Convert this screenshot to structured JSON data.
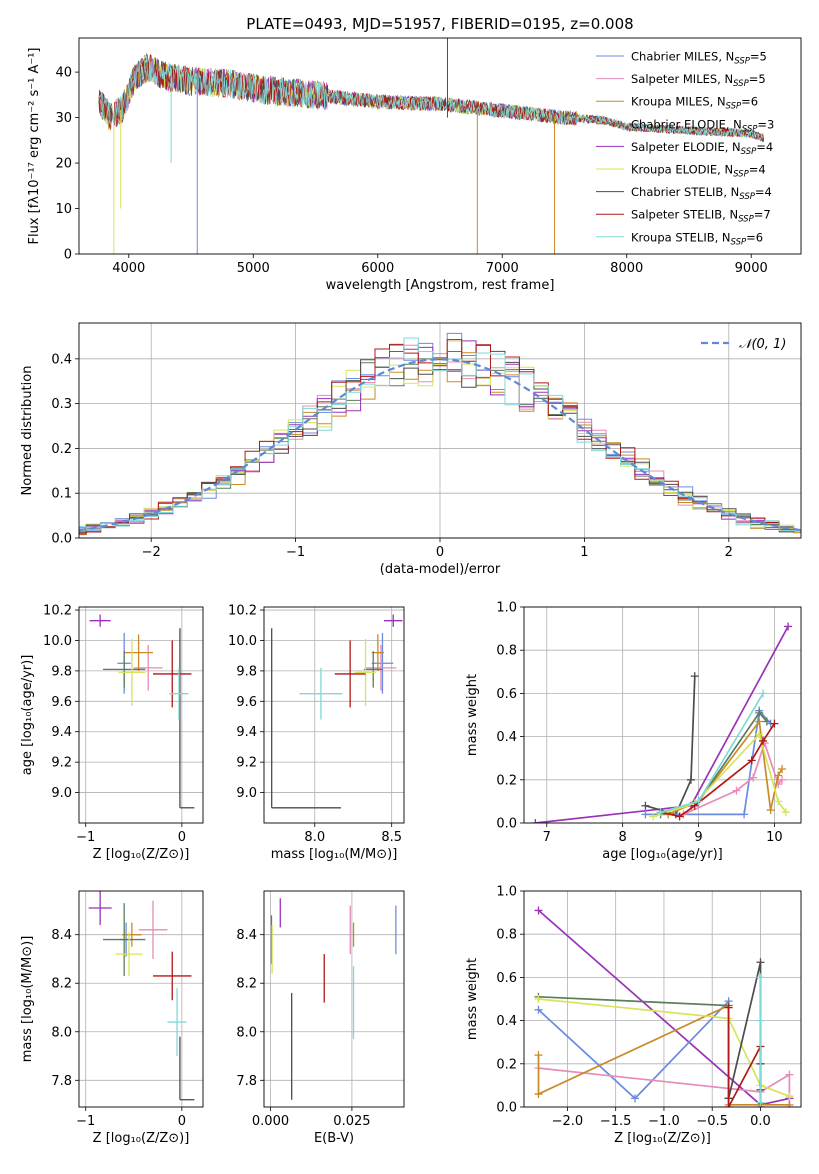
{
  "title": "PLATE=0493, MJD=51957, FIBERID=0195, z=0.008",
  "colors": {
    "cm": "#6a8be0",
    "sm": "#e58cb8",
    "km": "#c98a26",
    "ce": "#5a7d5a",
    "se": "#9932b8",
    "ke": "#d7e35a",
    "cs": "#4c4c4c",
    "ss": "#b01818",
    "ks": "#7fd9d9",
    "norm": "#5b8bd6",
    "grid": "#b0b0b0"
  },
  "chart_data": [
    {
      "id": "spectrum",
      "type": "line",
      "xlabel": "wavelength [Angstrom, rest frame]",
      "ylabel": "Flux [fλ10⁻¹⁷ erg cm⁻² s⁻¹ A⁻¹]",
      "xlim": [
        3600,
        9400
      ],
      "ylim": [
        0,
        47.5
      ],
      "xticks": [
        4000,
        5000,
        6000,
        7000,
        8000,
        9000
      ],
      "yticks": [
        0,
        10,
        20,
        30,
        40
      ],
      "grid": false,
      "legend_position": "top-right",
      "legend": [
        {
          "label": "Chabrier MILES, N",
          "sub": "SSP",
          "tail": "=5",
          "color": "cm"
        },
        {
          "label": "Salpeter MILES, N",
          "sub": "SSP",
          "tail": "=5",
          "color": "sm"
        },
        {
          "label": "Kroupa MILES, N",
          "sub": "SSP",
          "tail": "=6",
          "color": "km"
        },
        {
          "label": "Chabrier ELODIE, N",
          "sub": "SSP",
          "tail": "=3",
          "color": "ce"
        },
        {
          "label": "Salpeter ELODIE, N",
          "sub": "SSP",
          "tail": "=4",
          "color": "se"
        },
        {
          "label": "Kroupa ELODIE, N",
          "sub": "SSP",
          "tail": "=4",
          "color": "ke"
        },
        {
          "label": "Chabrier STELIB, N",
          "sub": "SSP",
          "tail": "=4",
          "color": "cs"
        },
        {
          "label": "Salpeter STELIB, N",
          "sub": "SSP",
          "tail": "=7",
          "color": "ss"
        },
        {
          "label": "Kroupa STELIB, N",
          "sub": "SSP",
          "tail": "=6",
          "color": "ks"
        }
      ],
      "continuum": [
        [
          3760,
          34
        ],
        [
          3850,
          30
        ],
        [
          3950,
          32
        ],
        [
          4050,
          39
        ],
        [
          4150,
          41
        ],
        [
          4300,
          39
        ],
        [
          4500,
          38
        ],
        [
          4800,
          37.5
        ],
        [
          5100,
          36
        ],
        [
          5500,
          35
        ],
        [
          6000,
          33.5
        ],
        [
          6500,
          33
        ],
        [
          7000,
          31.5
        ],
        [
          7500,
          30
        ],
        [
          7800,
          29.5
        ],
        [
          8000,
          28
        ],
        [
          8300,
          27.5
        ],
        [
          8600,
          27
        ],
        [
          9000,
          26.5
        ],
        [
          9100,
          25.5
        ]
      ],
      "spikes": [
        {
          "x": 3880,
          "ymin": 0,
          "color": "ke"
        },
        {
          "x": 3935,
          "ymin": 10,
          "color": "ke"
        },
        {
          "x": 4340,
          "ymin": 20,
          "color": "ks"
        },
        {
          "x": 4550,
          "ymin": 0,
          "color": "cm"
        },
        {
          "x": 6560,
          "ymin": 30,
          "ymax": 47.5,
          "color": "cs"
        },
        {
          "x": 6800,
          "ymin": 0,
          "color": "km"
        },
        {
          "x": 7420,
          "ymin": 0,
          "color": "km"
        }
      ]
    },
    {
      "id": "residuals",
      "type": "area",
      "xlabel": "(data-model)/error",
      "ylabel": "Normed distribution",
      "xlim": [
        -2.5,
        2.5
      ],
      "ylim": [
        0,
        0.48
      ],
      "xticks": [
        -2,
        -1,
        0,
        1,
        2
      ],
      "yticks": [
        0.0,
        0.1,
        0.2,
        0.3,
        0.4
      ],
      "grid": true,
      "legend_position": "top-right",
      "legend_label": "𝒩(0, 1)",
      "bin_width": 0.1,
      "normal": {
        "mu": 0,
        "sigma": 1
      }
    },
    {
      "id": "age_vs_z",
      "type": "scatter",
      "xlabel": "Z [log₁₀(Z/Z⊙)]",
      "ylabel": "age  [log₁₀(age/yr)]",
      "xlim": [
        -1.07,
        0.22
      ],
      "ylim": [
        8.8,
        10.22
      ],
      "xticks": [
        -1,
        0
      ],
      "yticks": [
        9.0,
        9.2,
        9.4,
        9.6,
        9.8,
        10.0,
        10.2
      ],
      "grid": true,
      "points": [
        {
          "c": "cm",
          "x": -0.6,
          "xe": 0.07,
          "y": 9.85,
          "ye": 0.2
        },
        {
          "c": "sm",
          "x": -0.35,
          "xe": 0.15,
          "y": 9.82,
          "ye": 0.15
        },
        {
          "c": "km",
          "x": -0.45,
          "xe": 0.15,
          "y": 9.92,
          "ye": 0.12
        },
        {
          "c": "ce",
          "x": -0.6,
          "xe": 0.22,
          "y": 9.81,
          "ye": 0.12
        },
        {
          "c": "se",
          "x": -0.85,
          "xe": 0.11,
          "y": 10.13,
          "ye": 0.04
        },
        {
          "c": "ke",
          "x": -0.52,
          "xe": 0.14,
          "y": 9.79,
          "ye": 0.22
        },
        {
          "c": "cs",
          "x": -0.02,
          "xe": 0.15,
          "y": 9.0,
          "ye": 1.08,
          "yasym": true
        },
        {
          "c": "ss",
          "x": -0.1,
          "xe": 0.2,
          "y": 9.78,
          "ye": 0.22
        },
        {
          "c": "ks",
          "x": -0.03,
          "xe": 0.1,
          "y": 9.65,
          "ye": 0.17
        }
      ]
    },
    {
      "id": "age_vs_mass",
      "type": "scatter",
      "xlabel": "mass [log₁₀(M/M⊙)]",
      "ylabel": "",
      "xlim": [
        7.67,
        8.58
      ],
      "ylim": [
        8.8,
        10.22
      ],
      "xticks": [
        8.0,
        8.5
      ],
      "yticks": [
        9.0,
        9.2,
        9.4,
        9.6,
        9.8,
        10.0,
        10.2
      ],
      "grid": true,
      "points": [
        {
          "c": "cm",
          "x": 8.44,
          "xe": 0.07,
          "y": 9.85,
          "ye": 0.2
        },
        {
          "c": "sm",
          "x": 8.43,
          "xe": 0.1,
          "y": 9.82,
          "ye": 0.15
        },
        {
          "c": "km",
          "x": 8.41,
          "xe": 0.04,
          "y": 9.92,
          "ye": 0.12
        },
        {
          "c": "ce",
          "x": 8.38,
          "xe": 0.06,
          "y": 9.81,
          "ye": 0.12
        },
        {
          "c": "se",
          "x": 8.51,
          "xe": 0.06,
          "y": 10.13,
          "ye": 0.04
        },
        {
          "c": "ke",
          "x": 8.33,
          "xe": 0.07,
          "y": 9.79,
          "ye": 0.22
        },
        {
          "c": "cs",
          "x": 7.72,
          "xe": 0.45,
          "y": 8.9,
          "ye": 1.18,
          "corner": true
        },
        {
          "c": "ss",
          "x": 8.23,
          "xe": 0.1,
          "y": 9.78,
          "ye": 0.22
        },
        {
          "c": "ks",
          "x": 8.04,
          "xe": 0.14,
          "y": 9.65,
          "ye": 0.17
        }
      ]
    },
    {
      "id": "weight_vs_age",
      "type": "line",
      "xlabel": "age  [log₁₀(age/yr)]",
      "ylabel": "mass weight",
      "xlim": [
        6.7,
        10.35
      ],
      "ylim": [
        0,
        1.0
      ],
      "xticks": [
        7,
        8,
        9,
        10
      ],
      "yticks": [
        0.0,
        0.2,
        0.4,
        0.6,
        0.8,
        1.0
      ],
      "grid": true,
      "series": [
        {
          "c": "se",
          "pts": [
            [
              6.85,
              0.0
            ],
            [
              8.9,
              0.08
            ],
            [
              10.18,
              0.91
            ]
          ]
        },
        {
          "c": "cs",
          "pts": [
            [
              8.3,
              0.08
            ],
            [
              8.7,
              0.04
            ],
            [
              8.9,
              0.2
            ],
            [
              8.95,
              0.68
            ]
          ]
        },
        {
          "c": "cm",
          "pts": [
            [
              8.3,
              0.04
            ],
            [
              9.6,
              0.04
            ],
            [
              9.8,
              0.52
            ],
            [
              9.95,
              0.46
            ]
          ]
        },
        {
          "c": "sm",
          "pts": [
            [
              8.8,
              0.04
            ],
            [
              9.5,
              0.15
            ],
            [
              9.72,
              0.21
            ],
            [
              9.87,
              0.37
            ],
            [
              10.05,
              0.18
            ],
            [
              10.1,
              0.2
            ]
          ]
        },
        {
          "c": "km",
          "pts": [
            [
              8.6,
              0.04
            ],
            [
              9.0,
              0.1
            ],
            [
              9.8,
              0.47
            ],
            [
              9.95,
              0.06
            ],
            [
              10.05,
              0.22
            ],
            [
              10.1,
              0.25
            ]
          ]
        },
        {
          "c": "ce",
          "pts": [
            [
              8.5,
              0.04
            ],
            [
              9.0,
              0.1
            ],
            [
              9.8,
              0.51
            ],
            [
              9.9,
              0.47
            ]
          ]
        },
        {
          "c": "ke",
          "pts": [
            [
              8.4,
              0.03
            ],
            [
              8.95,
              0.09
            ],
            [
              9.8,
              0.41
            ],
            [
              10.05,
              0.1
            ],
            [
              10.15,
              0.05
            ]
          ]
        },
        {
          "c": "ss",
          "pts": [
            [
              8.5,
              0.05
            ],
            [
              8.75,
              0.03
            ],
            [
              8.95,
              0.08
            ],
            [
              9.7,
              0.29
            ],
            [
              9.85,
              0.38
            ],
            [
              10.0,
              0.46
            ]
          ]
        },
        {
          "c": "ks",
          "pts": [
            [
              8.5,
              0.05
            ],
            [
              9.0,
              0.1
            ],
            [
              9.85,
              0.6
            ]
          ]
        }
      ]
    },
    {
      "id": "mass_vs_z",
      "type": "scatter",
      "xlabel": "Z [log₁₀(Z/Z⊙)]",
      "ylabel": "mass [log₁₀(M/M⊙)]",
      "xlim": [
        -1.07,
        0.22
      ],
      "ylim": [
        7.69,
        8.58
      ],
      "xticks": [
        -1,
        0
      ],
      "yticks": [
        7.8,
        8.0,
        8.2,
        8.4
      ],
      "grid": true,
      "points": [
        {
          "c": "cm",
          "x": -0.58,
          "xe": 0.07,
          "y": 8.38,
          "ye": 0.07
        },
        {
          "c": "sm",
          "x": -0.3,
          "xe": 0.15,
          "y": 8.42,
          "ye": 0.12
        },
        {
          "c": "km",
          "x": -0.52,
          "xe": 0.1,
          "y": 8.4,
          "ye": 0.05
        },
        {
          "c": "ce",
          "x": -0.6,
          "xe": 0.22,
          "y": 8.38,
          "ye": 0.15
        },
        {
          "c": "se",
          "x": -0.85,
          "xe": 0.12,
          "y": 8.51,
          "ye": 0.07
        },
        {
          "c": "ke",
          "x": -0.55,
          "xe": 0.14,
          "y": 8.32,
          "ye": 0.09
        },
        {
          "c": "cs",
          "x": -0.02,
          "xe": 0.15,
          "y": 7.72,
          "ye": 0.26,
          "corner": true
        },
        {
          "c": "ss",
          "x": -0.1,
          "xe": 0.2,
          "y": 8.23,
          "ye": 0.1
        },
        {
          "c": "ks",
          "x": -0.05,
          "xe": 0.1,
          "y": 8.04,
          "ye": 0.14
        }
      ]
    },
    {
      "id": "mass_vs_ebv",
      "type": "scatter",
      "xlabel": "E(B-V)",
      "ylabel": "",
      "xlim": [
        -0.002,
        0.041
      ],
      "ylim": [
        7.69,
        8.58
      ],
      "xticks": [
        0.0,
        0.025
      ],
      "xticklabels": [
        "0.000",
        "0.025"
      ],
      "yticks": [
        7.8,
        8.0,
        8.2,
        8.4
      ],
      "grid": true,
      "points": [
        {
          "c": "cm",
          "x": 0.0385,
          "xe": 0,
          "y": 8.42,
          "ye": 0.1
        },
        {
          "c": "sm",
          "x": 0.0245,
          "xe": 0,
          "y": 8.42,
          "ye": 0.1
        },
        {
          "c": "km",
          "x": 0.0255,
          "xe": 0,
          "y": 8.4,
          "ye": 0.05
        },
        {
          "c": "ce",
          "x": 0.0003,
          "xe": 0,
          "y": 8.38,
          "ye": 0.1
        },
        {
          "c": "se",
          "x": 0.003,
          "xe": 0,
          "y": 8.49,
          "ye": 0.06
        },
        {
          "c": "ke",
          "x": 0.0005,
          "xe": 0,
          "y": 8.34,
          "ye": 0.1
        },
        {
          "c": "cs",
          "x": 0.0065,
          "xe": 0,
          "y": 7.94,
          "ye": 0.22
        },
        {
          "c": "ss",
          "x": 0.0165,
          "xe": 0,
          "y": 8.22,
          "ye": 0.1
        },
        {
          "c": "ks",
          "x": 0.0255,
          "xe": 0,
          "y": 8.12,
          "ye": 0.15
        }
      ]
    },
    {
      "id": "weight_vs_z",
      "type": "line",
      "xlabel": "Z [log₁₀(Z/Z⊙)]",
      "ylabel": "mass weight",
      "xlim": [
        -2.45,
        0.42
      ],
      "ylim": [
        0,
        1.0
      ],
      "xticks": [
        -2.0,
        -1.5,
        -1.0,
        -0.5,
        0.0
      ],
      "xticklabels": [
        "−2.0",
        "−1.5",
        "−1.0",
        "−0.5",
        "0.0"
      ],
      "yticks": [
        0.0,
        0.2,
        0.4,
        0.6,
        0.8,
        1.0
      ],
      "grid": true,
      "series": [
        {
          "c": "se",
          "pts": [
            [
              -2.3,
              0.91
            ],
            [
              0.0,
              0.01
            ],
            [
              0.3,
              0.04
            ]
          ]
        },
        {
          "c": "cm",
          "pts": [
            [
              -2.3,
              0.45
            ],
            [
              -1.3,
              0.04
            ],
            [
              -0.33,
              0.49
            ],
            [
              -0.33,
              0.04
            ]
          ]
        },
        {
          "c": "sm",
          "pts": [
            [
              -2.3,
              0.18
            ],
            [
              0.0,
              0.07
            ],
            [
              0.3,
              0.15
            ],
            [
              0.3,
              0.0
            ]
          ]
        },
        {
          "c": "km",
          "pts": [
            [
              -2.3,
              0.24
            ],
            [
              -2.3,
              0.06
            ],
            [
              -0.33,
              0.47
            ],
            [
              -0.33,
              0.01
            ],
            [
              0.3,
              0.01
            ]
          ]
        },
        {
          "c": "ce",
          "pts": [
            [
              -2.3,
              0.51
            ],
            [
              -0.33,
              0.47
            ],
            [
              -0.33,
              0.04
            ]
          ]
        },
        {
          "c": "ke",
          "pts": [
            [
              -2.3,
              0.5
            ],
            [
              -0.33,
              0.41
            ],
            [
              0.0,
              0.1
            ],
            [
              0.3,
              0.05
            ]
          ]
        },
        {
          "c": "cs",
          "pts": [
            [
              -0.33,
              0.04
            ],
            [
              0.0,
              0.67
            ],
            [
              0.0,
              0.2
            ],
            [
              0.0,
              0.08
            ]
          ]
        },
        {
          "c": "ss",
          "pts": [
            [
              -0.33,
              0.46
            ],
            [
              -0.33,
              0.0
            ],
            [
              0.0,
              0.28
            ],
            [
              0.0,
              0.0
            ]
          ]
        },
        {
          "c": "ks",
          "pts": [
            [
              0.0,
              0.6
            ],
            [
              0.0,
              0.4
            ],
            [
              0.0,
              0.02
            ]
          ]
        }
      ]
    }
  ]
}
